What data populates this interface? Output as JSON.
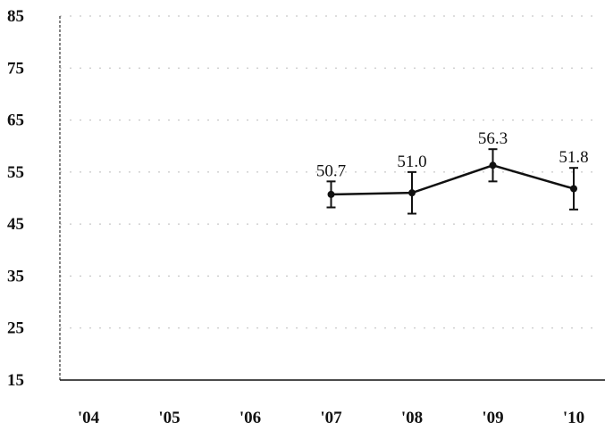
{
  "chart_data": {
    "type": "line",
    "title": "",
    "xlabel": "",
    "ylabel": "",
    "categories": [
      "'04",
      "'05",
      "'06",
      "'07",
      "'08",
      "'09",
      "'10"
    ],
    "series": [
      {
        "values": [
          null,
          null,
          null,
          50.7,
          51.0,
          56.3,
          51.8
        ],
        "labels": [
          "",
          "",
          "",
          "50.7",
          "51.0",
          "56.3",
          "51.8"
        ],
        "error_low": [
          null,
          null,
          null,
          48.2,
          47.0,
          53.2,
          47.8
        ],
        "error_high": [
          null,
          null,
          null,
          53.2,
          55.0,
          59.4,
          55.8
        ],
        "color": "#111111"
      }
    ],
    "yticks": [
      "15",
      "25",
      "35",
      "45",
      "55",
      "65",
      "75",
      "85"
    ],
    "ylim": [
      15,
      85
    ],
    "grid": "dotted"
  }
}
